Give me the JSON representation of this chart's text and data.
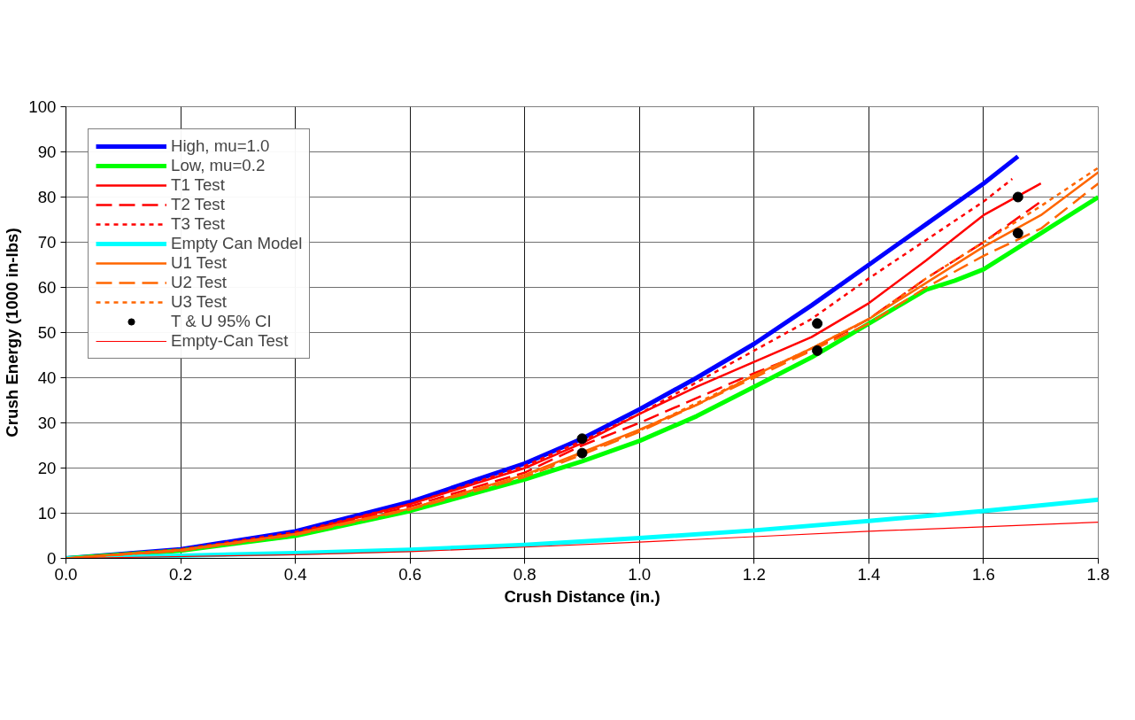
{
  "chart_data": {
    "type": "line",
    "xlabel": "Crush Distance (in.)",
    "ylabel": "Crush Energy (1000 in-lbs)",
    "xlim": [
      0,
      1.8
    ],
    "ylim": [
      0,
      100
    ],
    "xticks": [
      {
        "value": 0,
        "label": "0.0"
      },
      0.2,
      0.4,
      0.6,
      0.8,
      {
        "value": 1,
        "label": "1.0"
      },
      1.2,
      1.4,
      1.6,
      1.8
    ],
    "yticks": [
      0,
      10,
      20,
      30,
      40,
      50,
      60,
      70,
      80,
      90,
      100
    ],
    "grid": true,
    "legend": "top left",
    "series": [
      {
        "name": "High, mu=1.0",
        "color": "#0000ff",
        "line_style": "solid",
        "x": [
          0,
          0.2,
          0.4,
          0.6,
          0.8,
          0.9,
          1.0,
          1.1,
          1.2,
          1.3,
          1.4,
          1.5,
          1.6,
          1.66
        ],
        "values": [
          0,
          2,
          6,
          12.5,
          21,
          26.5,
          33,
          40,
          47.5,
          56,
          65,
          74,
          83,
          89
        ]
      },
      {
        "name": "Low, mu=0.2",
        "color": "#00ff00",
        "line_style": "solid",
        "x": [
          0,
          0.2,
          0.4,
          0.6,
          0.8,
          0.9,
          1.0,
          1.1,
          1.2,
          1.3,
          1.4,
          1.5,
          1.55,
          1.6,
          1.7,
          1.8
        ],
        "values": [
          0,
          1.7,
          5,
          10.5,
          17.5,
          21.5,
          26,
          31.5,
          38,
          44.5,
          52,
          59.5,
          61.5,
          64,
          72,
          80
        ]
      },
      {
        "name": "T1 Test",
        "color": "#ff0000",
        "line_style": "solid",
        "x": [
          0,
          0.2,
          0.4,
          0.6,
          0.8,
          0.9,
          1.0,
          1.1,
          1.2,
          1.3,
          1.4,
          1.5,
          1.6,
          1.7
        ],
        "values": [
          0,
          1.8,
          5.5,
          12,
          20,
          25.5,
          32,
          38,
          43.5,
          49,
          56.5,
          66,
          76,
          83
        ]
      },
      {
        "name": "T2 Test",
        "color": "#ff0000",
        "line_style": "dashed",
        "x": [
          0,
          0.2,
          0.4,
          0.6,
          0.8,
          0.9,
          1.0,
          1.2,
          1.3,
          1.4,
          1.5,
          1.6,
          1.7
        ],
        "values": [
          0,
          1.7,
          5.3,
          11.5,
          19,
          25,
          30,
          41,
          46,
          53,
          62,
          70,
          79
        ]
      },
      {
        "name": "T3 Test",
        "color": "#ff0000",
        "line_style": "dotted",
        "x": [
          0,
          0.2,
          0.4,
          0.6,
          0.8,
          0.9,
          1.0,
          1.1,
          1.2,
          1.3,
          1.4,
          1.5,
          1.6,
          1.65
        ],
        "values": [
          0,
          2,
          5.8,
          12,
          20.5,
          26,
          32,
          39,
          46,
          53,
          62,
          70.5,
          79,
          84
        ]
      },
      {
        "name": "Empty Can Model",
        "color": "#00ffff",
        "line_style": "solid",
        "x": [
          0,
          0.2,
          0.4,
          0.6,
          0.8,
          1.0,
          1.2,
          1.4,
          1.6,
          1.8
        ],
        "values": [
          0,
          0.6,
          1.2,
          1.9,
          3,
          4.5,
          6.2,
          8.3,
          10.5,
          13
        ]
      },
      {
        "name": "U1 Test",
        "color": "#ff6600",
        "line_style": "solid",
        "x": [
          0,
          0.2,
          0.4,
          0.6,
          0.8,
          0.9,
          1.0,
          1.1,
          1.2,
          1.3,
          1.4,
          1.5,
          1.6,
          1.7,
          1.8
        ],
        "values": [
          0,
          1.8,
          5.4,
          11,
          18.5,
          23.5,
          28.5,
          34,
          40.5,
          46.5,
          53,
          61,
          69,
          76,
          85.5
        ]
      },
      {
        "name": "U2 Test",
        "color": "#ff6600",
        "line_style": "dashed",
        "x": [
          0,
          0.2,
          0.4,
          0.6,
          0.8,
          0.9,
          1.0,
          1.2,
          1.3,
          1.4,
          1.5,
          1.6,
          1.7,
          1.8
        ],
        "values": [
          0,
          1.7,
          5.2,
          10.8,
          18,
          23,
          28,
          40,
          46,
          52,
          60,
          67,
          73,
          83
        ]
      },
      {
        "name": "U3 Test",
        "color": "#ff6600",
        "line_style": "dotted",
        "x": [
          0,
          0.2,
          0.4,
          0.6,
          0.8,
          0.9,
          1.0,
          1.2,
          1.3,
          1.4,
          1.5,
          1.6,
          1.7,
          1.8
        ],
        "values": [
          0,
          1.8,
          5.3,
          11,
          18.3,
          23.3,
          28.3,
          40.5,
          46.5,
          53,
          62,
          70,
          78,
          86.5
        ]
      },
      {
        "name": "T & U 95% CI",
        "type": "scatter",
        "marker": "circle",
        "color": "#000000",
        "x": [
          0.9,
          0.9,
          1.31,
          1.31,
          1.66,
          1.66
        ],
        "values": [
          26.5,
          23.3,
          52,
          46,
          80,
          72
        ]
      },
      {
        "name": "Empty-Can Test",
        "color": "#ff0000",
        "line_style": "solid",
        "x": [
          0,
          0.4,
          0.6,
          0.8,
          1.0,
          1.2,
          1.4,
          1.6,
          1.8
        ],
        "values": [
          0,
          0.8,
          1.5,
          2.5,
          3.6,
          4.8,
          6,
          7,
          8
        ]
      }
    ]
  }
}
